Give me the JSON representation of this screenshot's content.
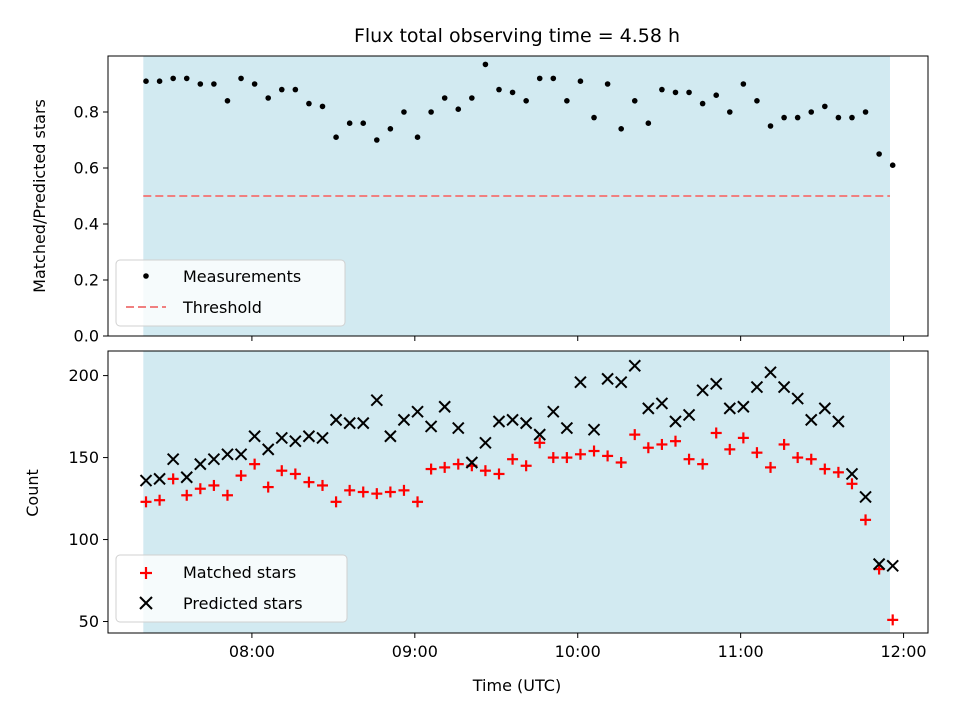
{
  "chart_data": [
    {
      "type": "scatter",
      "title": "Flux total observing time = 4.58 h",
      "xlabel": "",
      "ylabel": "Matched/Predicted stars",
      "ylim": [
        0,
        1.0
      ],
      "yticks": [
        "0.0",
        "0.2",
        "0.4",
        "0.6",
        "0.8"
      ],
      "xlim": [
        "07:07",
        "12:09"
      ],
      "shaded_span": [
        "07:20",
        "11:55"
      ],
      "shade_color": "#add8e6",
      "legend": {
        "placement": "lower-left",
        "entries": [
          "Measurements",
          "Threshold"
        ]
      },
      "series": [
        {
          "name": "Measurements",
          "marker": "dot",
          "color": "#000000",
          "x": [
            "07:21",
            "07:26",
            "07:31",
            "07:36",
            "07:41",
            "07:46",
            "07:51",
            "07:56",
            "08:01",
            "08:06",
            "08:11",
            "08:16",
            "08:21",
            "08:26",
            "08:31",
            "08:36",
            "08:41",
            "08:46",
            "08:51",
            "08:56",
            "09:01",
            "09:06",
            "09:11",
            "09:16",
            "09:21",
            "09:26",
            "09:31",
            "09:36",
            "09:41",
            "09:46",
            "09:51",
            "09:56",
            "10:01",
            "10:06",
            "10:11",
            "10:16",
            "10:21",
            "10:26",
            "10:31",
            "10:36",
            "10:41",
            "10:46",
            "10:51",
            "10:56",
            "11:01",
            "11:06",
            "11:11",
            "11:16",
            "11:21",
            "11:26",
            "11:31",
            "11:36",
            "11:41",
            "11:46",
            "11:51",
            "11:56"
          ],
          "values": [
            0.91,
            0.91,
            0.92,
            0.92,
            0.9,
            0.9,
            0.84,
            0.92,
            0.9,
            0.85,
            0.88,
            0.88,
            0.83,
            0.82,
            0.71,
            0.76,
            0.76,
            0.7,
            0.74,
            0.8,
            0.71,
            0.8,
            0.85,
            0.81,
            0.85,
            0.97,
            0.88,
            0.87,
            0.84,
            0.92,
            0.92,
            0.84,
            0.91,
            0.78,
            0.9,
            0.74,
            0.84,
            0.76,
            0.88,
            0.87,
            0.87,
            0.83,
            0.86,
            0.8,
            0.9,
            0.84,
            0.75,
            0.78,
            0.78,
            0.8,
            0.82,
            0.78,
            0.78,
            0.8,
            0.65,
            0.61
          ]
        },
        {
          "name": "Threshold",
          "style": "dashed",
          "color": "#f08080",
          "x": [
            "07:20",
            "11:55"
          ],
          "values": [
            0.5,
            0.5
          ]
        }
      ]
    },
    {
      "type": "scatter",
      "title": "",
      "xlabel": "Time (UTC)",
      "ylabel": "Count",
      "ylim": [
        43,
        215
      ],
      "yticks": [
        "50",
        "100",
        "150",
        "200"
      ],
      "xlim": [
        "07:07",
        "12:09"
      ],
      "xticks": [
        "08:00",
        "09:00",
        "10:00",
        "11:00",
        "12:00"
      ],
      "shaded_span": [
        "07:20",
        "11:55"
      ],
      "shade_color": "#add8e6",
      "legend": {
        "placement": "lower-left",
        "entries": [
          "Matched stars",
          "Predicted stars"
        ]
      },
      "series": [
        {
          "name": "Matched stars",
          "marker": "plus",
          "color": "#ff0000",
          "x": [
            "07:21",
            "07:26",
            "07:31",
            "07:36",
            "07:41",
            "07:46",
            "07:51",
            "07:56",
            "08:01",
            "08:06",
            "08:11",
            "08:16",
            "08:21",
            "08:26",
            "08:31",
            "08:36",
            "08:41",
            "08:46",
            "08:51",
            "08:56",
            "09:01",
            "09:06",
            "09:11",
            "09:16",
            "09:21",
            "09:26",
            "09:31",
            "09:36",
            "09:41",
            "09:46",
            "09:51",
            "09:56",
            "10:01",
            "10:06",
            "10:11",
            "10:16",
            "10:21",
            "10:26",
            "10:31",
            "10:36",
            "10:41",
            "10:46",
            "10:51",
            "10:56",
            "11:01",
            "11:06",
            "11:11",
            "11:16",
            "11:21",
            "11:26",
            "11:31",
            "11:36",
            "11:41",
            "11:46",
            "11:51",
            "11:56"
          ],
          "values": [
            123,
            124,
            137,
            127,
            131,
            133,
            127,
            139,
            146,
            132,
            142,
            140,
            135,
            133,
            123,
            130,
            129,
            128,
            129,
            130,
            123,
            143,
            144,
            146,
            145,
            142,
            140,
            149,
            145,
            159,
            150,
            150,
            152,
            154,
            151,
            147,
            164,
            156,
            158,
            160,
            149,
            146,
            165,
            155,
            162,
            153,
            144,
            158,
            150,
            149,
            143,
            141,
            134,
            112,
            82,
            51
          ]
        },
        {
          "name": "Predicted stars",
          "marker": "x",
          "color": "#000000",
          "x": [
            "07:21",
            "07:26",
            "07:31",
            "07:36",
            "07:41",
            "07:46",
            "07:51",
            "07:56",
            "08:01",
            "08:06",
            "08:11",
            "08:16",
            "08:21",
            "08:26",
            "08:31",
            "08:36",
            "08:41",
            "08:46",
            "08:51",
            "08:56",
            "09:01",
            "09:06",
            "09:11",
            "09:16",
            "09:21",
            "09:26",
            "09:31",
            "09:36",
            "09:41",
            "09:46",
            "09:51",
            "09:56",
            "10:01",
            "10:06",
            "10:11",
            "10:16",
            "10:21",
            "10:26",
            "10:31",
            "10:36",
            "10:41",
            "10:46",
            "10:51",
            "10:56",
            "11:01",
            "11:06",
            "11:11",
            "11:16",
            "11:21",
            "11:26",
            "11:31",
            "11:36",
            "11:41",
            "11:46",
            "11:51",
            "11:56"
          ],
          "values": [
            136,
            137,
            149,
            138,
            146,
            149,
            152,
            152,
            163,
            155,
            162,
            160,
            163,
            162,
            173,
            171,
            171,
            185,
            163,
            173,
            178,
            169,
            181,
            168,
            147,
            159,
            172,
            173,
            171,
            164,
            178,
            168,
            196,
            167,
            198,
            196,
            206,
            180,
            183,
            172,
            176,
            191,
            195,
            180,
            181,
            193,
            202,
            193,
            186,
            173,
            180,
            172,
            140,
            126,
            85,
            84
          ]
        }
      ]
    }
  ]
}
